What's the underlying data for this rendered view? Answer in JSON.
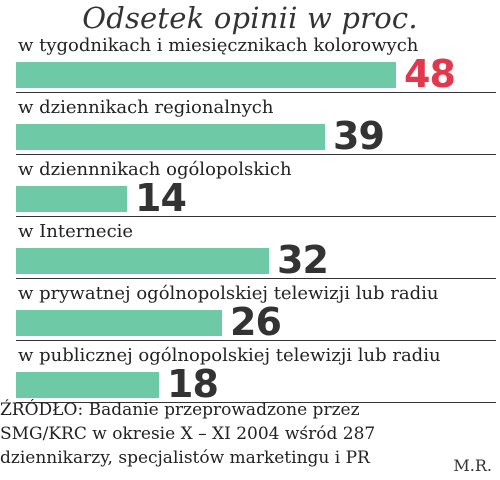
{
  "chart_data": {
    "type": "bar",
    "orientation": "horizontal",
    "title": "Odsetek opinii w proc.",
    "categories": [
      "w tygodnikach i miesięcznikach kolorowych",
      "w dziennikach regionalnych",
      "w dziennnikach ogólopolskich",
      "w Internecie",
      "w prywatnej ogólnopolskiej telewizji lub radiu",
      "w publicznej ogólnopolskiej telewizji lub radiu"
    ],
    "values": [
      48,
      39,
      14,
      32,
      26,
      18
    ],
    "xlim": [
      0,
      60
    ],
    "grid": false,
    "legend": "none",
    "colors": {
      "bar": "#6ec9a6",
      "value": "#333333",
      "highlight_value": "#e2384d",
      "separator": "#333333"
    },
    "highlight_index": 0
  },
  "source_lines": [
    "ŹRÓDŁO: Badanie  przeprowadzone przez",
    "SMG/KRC w okresie X – XI 2004 wśród 287",
    "dziennikarzy, specjalistów marketingu i PR"
  ],
  "author": "M.R."
}
